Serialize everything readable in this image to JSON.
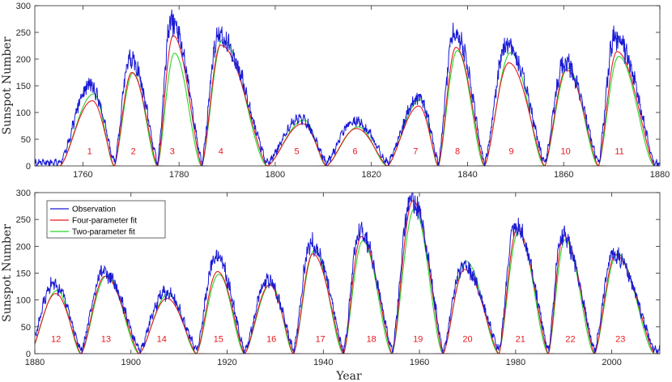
{
  "colors": {
    "observation": "#1a1ad6",
    "four_param": "#e8191f",
    "two_param": "#27d627",
    "axis": "#262626",
    "cycle_label": "#e8191f"
  },
  "chart_data": [
    {
      "type": "line",
      "panel": "top",
      "xlabel": "",
      "ylabel": "Sunspot Number",
      "xlim": [
        1750,
        1880
      ],
      "ylim": [
        0,
        300
      ],
      "xticks": [
        1760,
        1780,
        1800,
        1820,
        1840,
        1860,
        1880
      ],
      "yticks": [
        0,
        50,
        100,
        150,
        200,
        250,
        300
      ],
      "cycles": [
        {
          "label": "1",
          "start": 1755.2,
          "max_year": 1761.5,
          "max_value": 144,
          "end": 1766.5,
          "label_x": 1761.4,
          "four_peak": 122,
          "two_peak": 135
        },
        {
          "label": "2",
          "start": 1766.5,
          "max_year": 1769.8,
          "max_value": 193,
          "end": 1775.5,
          "label_x": 1770.5,
          "four_peak": 175,
          "two_peak": 174
        },
        {
          "label": "3",
          "start": 1775.5,
          "max_year": 1778.4,
          "max_value": 264,
          "end": 1784.7,
          "label_x": 1778.6,
          "four_peak": 244,
          "two_peak": 211
        },
        {
          "label": "4",
          "start": 1784.7,
          "max_year": 1788.1,
          "max_value": 235,
          "end": 1798.3,
          "label_x": 1788.7,
          "four_peak": 226,
          "two_peak": 236
        },
        {
          "label": "5",
          "start": 1798.3,
          "max_year": 1805.2,
          "max_value": 82,
          "end": 1810.6,
          "label_x": 1804.5,
          "four_peak": 79,
          "two_peak": 86
        },
        {
          "label": "6",
          "start": 1810.6,
          "max_year": 1816.4,
          "max_value": 78,
          "end": 1823.3,
          "label_x": 1816.6,
          "four_peak": 70,
          "two_peak": 73
        },
        {
          "label": "7",
          "start": 1823.3,
          "max_year": 1829.9,
          "max_value": 120,
          "end": 1833.9,
          "label_x": 1829.2,
          "four_peak": 112,
          "two_peak": 124
        },
        {
          "label": "8",
          "start": 1833.9,
          "max_year": 1837.2,
          "max_value": 245,
          "end": 1843.5,
          "label_x": 1837.9,
          "four_peak": 222,
          "two_peak": 216
        },
        {
          "label": "9",
          "start": 1843.5,
          "max_year": 1848.1,
          "max_value": 219,
          "end": 1856.0,
          "label_x": 1849.1,
          "four_peak": 193,
          "two_peak": 212
        },
        {
          "label": "10",
          "start": 1856.0,
          "max_year": 1860.1,
          "max_value": 186,
          "end": 1867.2,
          "label_x": 1860.4,
          "four_peak": 180,
          "two_peak": 183
        },
        {
          "label": "11",
          "start": 1867.2,
          "max_year": 1870.6,
          "max_value": 234,
          "end": 1878.9,
          "label_x": 1871.6,
          "four_peak": 214,
          "two_peak": 205
        }
      ]
    },
    {
      "type": "line",
      "panel": "bottom",
      "xlabel": "Year",
      "ylabel": "Sunspot Number",
      "xlim": [
        1880,
        2010
      ],
      "ylim": [
        0,
        300
      ],
      "xticks": [
        1880,
        1900,
        1920,
        1940,
        1960,
        1980,
        2000
      ],
      "yticks": [
        0,
        50,
        100,
        150,
        200,
        250,
        300
      ],
      "legend": [
        "Observation",
        "Four-parameter fit",
        "Two-parameter fit"
      ],
      "legend_loc": "top-left",
      "cycles": [
        {
          "label": "12",
          "start": 1878.9,
          "max_year": 1883.9,
          "max_value": 124,
          "end": 1889.6,
          "label_x": 1884.4,
          "four_peak": 112,
          "two_peak": 118
        },
        {
          "label": "13",
          "start": 1889.6,
          "max_year": 1894.1,
          "max_value": 147,
          "end": 1901.7,
          "label_x": 1894.8,
          "four_peak": 144,
          "two_peak": 145
        },
        {
          "label": "14",
          "start": 1901.7,
          "max_year": 1907.0,
          "max_value": 110,
          "end": 1913.6,
          "label_x": 1906.4,
          "four_peak": 103,
          "two_peak": 112
        },
        {
          "label": "15",
          "start": 1913.6,
          "max_year": 1917.6,
          "max_value": 175,
          "end": 1923.6,
          "label_x": 1918.2,
          "four_peak": 153,
          "two_peak": 148
        },
        {
          "label": "16",
          "start": 1923.6,
          "max_year": 1928.4,
          "max_value": 130,
          "end": 1933.8,
          "label_x": 1929.2,
          "four_peak": 128,
          "two_peak": 130
        },
        {
          "label": "17",
          "start": 1933.8,
          "max_year": 1937.4,
          "max_value": 199,
          "end": 1944.2,
          "label_x": 1939.4,
          "four_peak": 186,
          "two_peak": 192
        },
        {
          "label": "18",
          "start": 1944.2,
          "max_year": 1947.5,
          "max_value": 219,
          "end": 1954.3,
          "label_x": 1950.0,
          "four_peak": 218,
          "two_peak": 210
        },
        {
          "label": "19",
          "start": 1954.3,
          "max_year": 1958.2,
          "max_value": 285,
          "end": 1964.9,
          "label_x": 1959.7,
          "four_peak": 285,
          "two_peak": 270
        },
        {
          "label": "20",
          "start": 1964.9,
          "max_year": 1968.9,
          "max_value": 157,
          "end": 1976.5,
          "label_x": 1970.0,
          "four_peak": 157,
          "two_peak": 172
        },
        {
          "label": "21",
          "start": 1976.5,
          "max_year": 1979.9,
          "max_value": 233,
          "end": 1986.8,
          "label_x": 1981.0,
          "four_peak": 232,
          "two_peak": 228
        },
        {
          "label": "22",
          "start": 1986.8,
          "max_year": 1989.6,
          "max_value": 213,
          "end": 1996.4,
          "label_x": 1991.4,
          "four_peak": 220,
          "two_peak": 212
        },
        {
          "label": "23",
          "start": 1996.4,
          "max_year": 2000.3,
          "max_value": 180,
          "end": 2008.9,
          "label_x": 2001.8,
          "four_peak": 184,
          "two_peak": 186
        }
      ]
    }
  ]
}
